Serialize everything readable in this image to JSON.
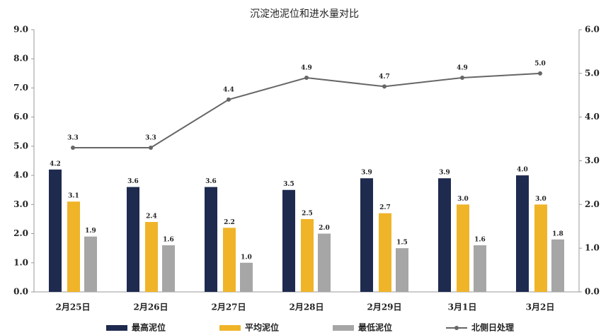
{
  "chart_data": {
    "type": "bar",
    "title": "沉淀池泥位和进水量对比",
    "categories": [
      "2月25日",
      "2月26日",
      "2月27日",
      "2月28日",
      "2月29日",
      "3月1日",
      "3月2日"
    ],
    "series": [
      {
        "name": "最高泥位",
        "color": "#1f2a4f",
        "type": "bar",
        "values": [
          4.2,
          3.6,
          3.6,
          3.5,
          3.9,
          3.9,
          4.0
        ],
        "value_labels": [
          "4.2",
          "3.6",
          "3.6",
          "3.5",
          "3.9",
          "3.9",
          "4.0"
        ]
      },
      {
        "name": "平均泥位",
        "color": "#f0b429",
        "type": "bar",
        "values": [
          3.1,
          2.4,
          2.2,
          2.5,
          2.7,
          3.0,
          3.0
        ],
        "value_labels": [
          "3.1",
          "2.4",
          "2.2",
          "2.5",
          "2.7",
          "3.0",
          "3.0"
        ]
      },
      {
        "name": "最低泥位",
        "color": "#a6a6a6",
        "type": "bar",
        "values": [
          1.9,
          1.6,
          1.0,
          2.0,
          1.5,
          1.6,
          1.8
        ],
        "value_labels": [
          "1.9",
          "1.6",
          "1.0",
          "2.0",
          "1.5",
          "1.6",
          "1.8"
        ]
      },
      {
        "name": "北侧日处理",
        "color": "#666666",
        "type": "line",
        "axis": "y2",
        "values": [
          3.3,
          3.3,
          4.4,
          4.9,
          4.7,
          4.9,
          5.0
        ],
        "value_labels": [
          "3.3",
          "3.3",
          "4.4",
          "4.9",
          "4.7",
          "4.9",
          "5.0"
        ]
      }
    ],
    "ylim": [
      0,
      9
    ],
    "yticks": [
      {
        "value": 0,
        "label": "0.0"
      },
      {
        "value": 1,
        "label": "1.0"
      },
      {
        "value": 2,
        "label": "2.0"
      },
      {
        "value": 3,
        "label": "3.0"
      },
      {
        "value": 4,
        "label": "4.0"
      },
      {
        "value": 5,
        "label": "5.0"
      },
      {
        "value": 6,
        "label": "6.0"
      },
      {
        "value": 7,
        "label": "7.0"
      },
      {
        "value": 8,
        "label": "8.0"
      },
      {
        "value": 9,
        "label": "9.0"
      }
    ],
    "y2lim": [
      0,
      6
    ],
    "y2ticks": [
      {
        "value": 0,
        "label": "0.0"
      },
      {
        "value": 1,
        "label": "1.0"
      },
      {
        "value": 2,
        "label": "2.0"
      },
      {
        "value": 3,
        "label": "3.0"
      },
      {
        "value": 4,
        "label": "4.0"
      },
      {
        "value": 5,
        "label": "5.0"
      },
      {
        "value": 6,
        "label": "6.0"
      }
    ],
    "legend": "bottom",
    "grid": false
  }
}
